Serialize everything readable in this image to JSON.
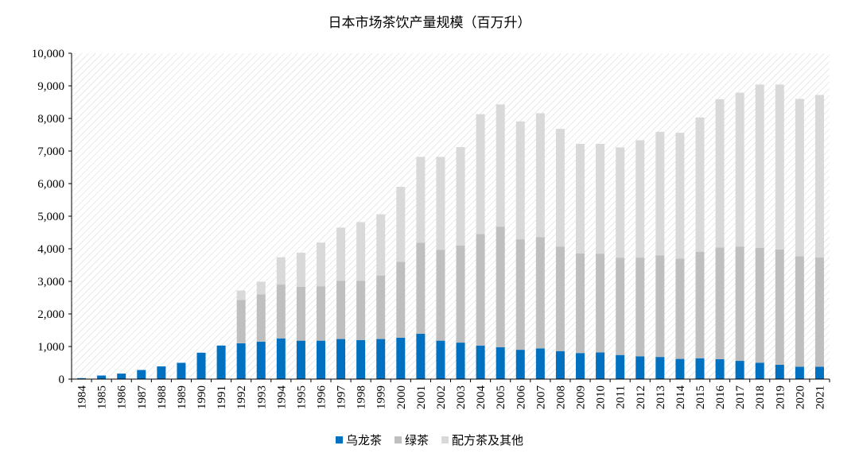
{
  "chart_data": {
    "type": "bar",
    "stacked": true,
    "title": "日本市场茶饮产量规模（百万升）",
    "categories": [
      "1984",
      "1985",
      "1986",
      "1987",
      "1988",
      "1989",
      "1990",
      "1991",
      "1992",
      "1993",
      "1994",
      "1995",
      "1996",
      "1997",
      "1998",
      "1999",
      "2000",
      "2001",
      "2002",
      "2003",
      "2004",
      "2005",
      "2006",
      "2007",
      "2008",
      "2009",
      "2010",
      "2011",
      "2012",
      "2013",
      "2014",
      "2015",
      "2016",
      "2017",
      "2018",
      "2019",
      "2020",
      "2021"
    ],
    "ylim": [
      0,
      10000
    ],
    "yticks": [
      0,
      1000,
      2000,
      3000,
      4000,
      5000,
      6000,
      7000,
      8000,
      9000,
      10000
    ],
    "ytick_labels": [
      "0",
      "1,000",
      "2,000",
      "3,000",
      "4,000",
      "5,000",
      "6,000",
      "7,000",
      "8,000",
      "9,000",
      "10,000"
    ],
    "grid": false,
    "background": "diagonal-hatch",
    "legend_position": "bottom",
    "series": [
      {
        "name": "乌龙茶",
        "color": "#0070c0",
        "values": [
          30,
          110,
          170,
          280,
          390,
          500,
          810,
          1030,
          1100,
          1150,
          1250,
          1180,
          1180,
          1230,
          1200,
          1230,
          1270,
          1390,
          1180,
          1120,
          1030,
          980,
          900,
          940,
          860,
          800,
          820,
          740,
          700,
          680,
          620,
          640,
          610,
          560,
          500,
          440,
          380,
          380
        ]
      },
      {
        "name": "绿茶",
        "color": "#bfbfbf",
        "values": [
          0,
          0,
          0,
          0,
          0,
          0,
          0,
          0,
          1330,
          1450,
          1650,
          1650,
          1670,
          1790,
          1820,
          1950,
          2330,
          2800,
          2790,
          2980,
          3420,
          3700,
          3390,
          3420,
          3210,
          3060,
          3030,
          2980,
          3030,
          3120,
          3080,
          3270,
          3430,
          3510,
          3530,
          3540,
          3390,
          3350
        ]
      },
      {
        "name": "配方茶及其他",
        "color": "#d9d9d9",
        "values": [
          0,
          0,
          0,
          0,
          0,
          0,
          0,
          0,
          290,
          390,
          840,
          1050,
          1340,
          1630,
          1800,
          1880,
          2300,
          2630,
          2850,
          3020,
          3680,
          3750,
          3620,
          3800,
          3610,
          3360,
          3370,
          3390,
          3600,
          3790,
          3860,
          4120,
          4550,
          4720,
          5010,
          5060,
          4830,
          4990
        ]
      }
    ]
  }
}
